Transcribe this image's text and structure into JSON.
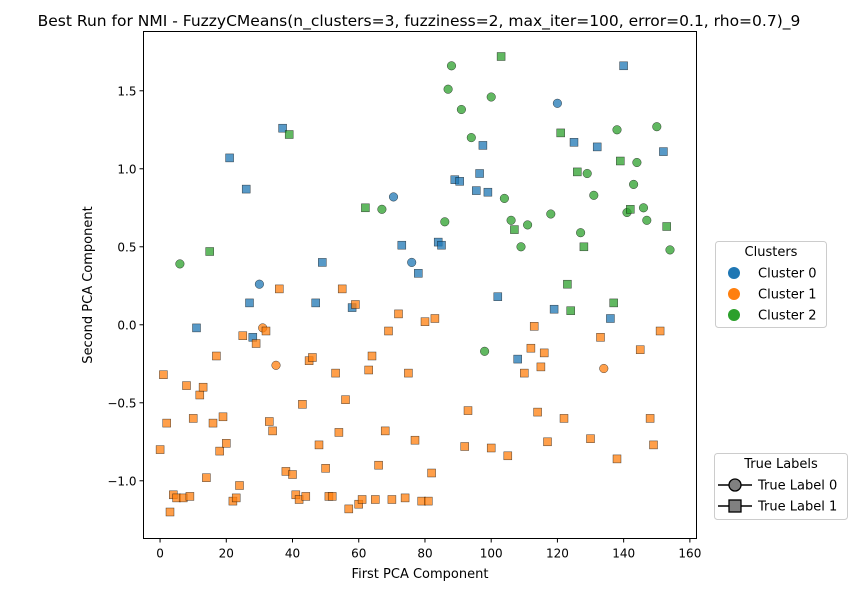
{
  "chart_data": {
    "type": "scatter",
    "title": "Best Run for NMI - FuzzyCMeans(n_clusters=3, fuzziness=2, max_iter=100, error=0.1, rho=0.7)_9",
    "xlabel": "First PCA Component",
    "ylabel": "Second PCA Component",
    "xlim": [
      -5,
      162
    ],
    "ylim": [
      -1.37,
      1.88
    ],
    "xticks": [
      0,
      20,
      40,
      60,
      80,
      100,
      120,
      140,
      160
    ],
    "yticks": [
      -1.0,
      -0.5,
      0.0,
      0.5,
      1.0,
      1.5
    ],
    "ytick_labels": [
      "−1.0",
      "−0.5",
      "0.0",
      "0.5",
      "1.0",
      "1.5"
    ],
    "grid": false,
    "colors": {
      "Cluster 0": "#1f77b4",
      "Cluster 1": "#ff7f0e",
      "Cluster 2": "#2ca02c"
    },
    "legend_clusters": {
      "title": "Clusters",
      "placement": "right",
      "entries": [
        {
          "label": "Cluster 0",
          "color": "#1f77b4"
        },
        {
          "label": "Cluster 1",
          "color": "#ff7f0e"
        },
        {
          "label": "Cluster 2",
          "color": "#2ca02c"
        }
      ]
    },
    "legend_labels": {
      "title": "True Labels",
      "placement": "lower-right",
      "entries": [
        {
          "label": "True Label 0",
          "marker": "circle"
        },
        {
          "label": "True Label 1",
          "marker": "square"
        }
      ]
    },
    "series": [
      {
        "cluster": 0,
        "true_label": 0,
        "color": "#1f77b4",
        "marker": "circle",
        "points": [
          [
            30,
            0.26
          ],
          [
            70.5,
            0.82
          ],
          [
            76,
            0.4
          ],
          [
            120,
            1.42
          ]
        ]
      },
      {
        "cluster": 0,
        "true_label": 1,
        "color": "#1f77b4",
        "marker": "square",
        "points": [
          [
            11,
            -0.02
          ],
          [
            21,
            1.07
          ],
          [
            26,
            0.87
          ],
          [
            27,
            0.14
          ],
          [
            28,
            -0.08
          ],
          [
            37,
            1.26
          ],
          [
            47,
            0.14
          ],
          [
            49,
            0.4
          ],
          [
            58,
            0.11
          ],
          [
            73,
            0.51
          ],
          [
            78,
            0.33
          ],
          [
            84,
            0.53
          ],
          [
            85,
            0.51
          ],
          [
            89,
            0.93
          ],
          [
            90.5,
            0.92
          ],
          [
            95.5,
            0.86
          ],
          [
            96.5,
            0.97
          ],
          [
            97.5,
            1.15
          ],
          [
            99,
            0.85
          ],
          [
            102,
            0.18
          ],
          [
            108,
            -0.22
          ],
          [
            119,
            0.1
          ],
          [
            125,
            1.17
          ],
          [
            132,
            1.14
          ],
          [
            136,
            0.04
          ],
          [
            140,
            1.66
          ],
          [
            152,
            1.11
          ]
        ]
      },
      {
        "cluster": 1,
        "true_label": 0,
        "color": "#ff7f0e",
        "marker": "circle",
        "points": [
          [
            31,
            -0.02
          ],
          [
            35,
            -0.26
          ],
          [
            134,
            -0.28
          ]
        ]
      },
      {
        "cluster": 1,
        "true_label": 1,
        "color": "#ff7f0e",
        "marker": "square",
        "points": [
          [
            0,
            -0.8
          ],
          [
            1,
            -0.32
          ],
          [
            2,
            -0.63
          ],
          [
            3,
            -1.2
          ],
          [
            4,
            -1.09
          ],
          [
            5,
            -1.11
          ],
          [
            7,
            -1.11
          ],
          [
            8,
            -0.39
          ],
          [
            9,
            -1.1
          ],
          [
            10,
            -0.6
          ],
          [
            12,
            -0.45
          ],
          [
            13,
            -0.4
          ],
          [
            14,
            -0.98
          ],
          [
            16,
            -0.63
          ],
          [
            17,
            -0.2
          ],
          [
            18,
            -0.81
          ],
          [
            19,
            -0.59
          ],
          [
            20,
            -0.76
          ],
          [
            22,
            -1.13
          ],
          [
            23,
            -1.11
          ],
          [
            24,
            -1.03
          ],
          [
            25,
            -0.07
          ],
          [
            29,
            -0.12
          ],
          [
            32,
            -0.04
          ],
          [
            33,
            -0.62
          ],
          [
            34,
            -0.68
          ],
          [
            36,
            0.23
          ],
          [
            38,
            -0.94
          ],
          [
            40,
            -0.96
          ],
          [
            41,
            -1.09
          ],
          [
            42,
            -1.12
          ],
          [
            43,
            -0.51
          ],
          [
            44,
            -1.1
          ],
          [
            45,
            -0.23
          ],
          [
            46,
            -0.21
          ],
          [
            48,
            -0.77
          ],
          [
            50,
            -0.92
          ],
          [
            51,
            -1.1
          ],
          [
            52,
            -1.1
          ],
          [
            53,
            -0.31
          ],
          [
            54,
            -0.69
          ],
          [
            55,
            0.23
          ],
          [
            56,
            -0.48
          ],
          [
            57,
            -1.18
          ],
          [
            59,
            0.13
          ],
          [
            60,
            -1.15
          ],
          [
            61,
            -1.12
          ],
          [
            63,
            -0.29
          ],
          [
            64,
            -0.2
          ],
          [
            65,
            -1.12
          ],
          [
            66,
            -0.9
          ],
          [
            68,
            -0.68
          ],
          [
            69,
            -0.04
          ],
          [
            70,
            -1.12
          ],
          [
            72,
            0.07
          ],
          [
            74,
            -1.11
          ],
          [
            75,
            -0.31
          ],
          [
            77,
            -0.74
          ],
          [
            79,
            -1.13
          ],
          [
            80,
            0.02
          ],
          [
            81,
            -1.13
          ],
          [
            82,
            -0.95
          ],
          [
            83,
            0.04
          ],
          [
            92,
            -0.78
          ],
          [
            93,
            -0.55
          ],
          [
            100,
            -0.79
          ],
          [
            105,
            -0.84
          ],
          [
            110,
            -0.31
          ],
          [
            112,
            -0.15
          ],
          [
            113,
            -0.01
          ],
          [
            114,
            -0.56
          ],
          [
            115,
            -0.27
          ],
          [
            116,
            -0.18
          ],
          [
            117,
            -0.75
          ],
          [
            122,
            -0.6
          ],
          [
            130,
            -0.73
          ],
          [
            133,
            -0.08
          ],
          [
            138,
            -0.86
          ],
          [
            145,
            -0.16
          ],
          [
            148,
            -0.6
          ],
          [
            149,
            -0.77
          ],
          [
            151,
            -0.04
          ]
        ]
      },
      {
        "cluster": 2,
        "true_label": 0,
        "color": "#2ca02c",
        "marker": "circle",
        "points": [
          [
            6,
            0.39
          ],
          [
            67,
            0.74
          ],
          [
            86,
            0.66
          ],
          [
            87,
            1.51
          ],
          [
            88,
            1.66
          ],
          [
            91,
            1.38
          ],
          [
            94,
            1.2
          ],
          [
            98,
            -0.17
          ],
          [
            100,
            1.46
          ],
          [
            104,
            0.81
          ],
          [
            106,
            0.67
          ],
          [
            109,
            0.5
          ],
          [
            111,
            0.64
          ],
          [
            118,
            0.71
          ],
          [
            127,
            0.59
          ],
          [
            129,
            0.97
          ],
          [
            131,
            0.83
          ],
          [
            138,
            1.25
          ],
          [
            141,
            0.72
          ],
          [
            143,
            0.9
          ],
          [
            144,
            1.04
          ],
          [
            146,
            0.75
          ],
          [
            147,
            0.67
          ],
          [
            150,
            1.27
          ],
          [
            154,
            0.48
          ]
        ]
      },
      {
        "cluster": 2,
        "true_label": 1,
        "color": "#2ca02c",
        "marker": "square",
        "points": [
          [
            15,
            0.47
          ],
          [
            39,
            1.22
          ],
          [
            62,
            0.75
          ],
          [
            103,
            1.72
          ],
          [
            107,
            0.61
          ],
          [
            121,
            1.23
          ],
          [
            123,
            0.26
          ],
          [
            124,
            0.09
          ],
          [
            126,
            0.98
          ],
          [
            128,
            0.5
          ],
          [
            137,
            0.14
          ],
          [
            139,
            1.05
          ],
          [
            142,
            0.74
          ],
          [
            153,
            0.63
          ]
        ]
      }
    ]
  }
}
